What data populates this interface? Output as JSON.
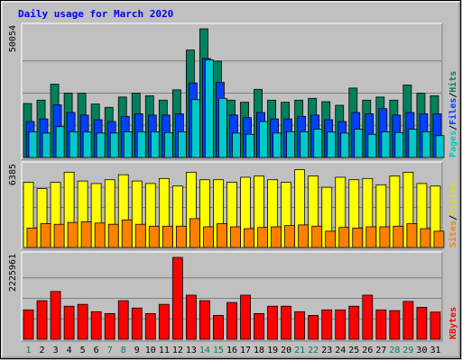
{
  "chart_data": {
    "type": "bar",
    "title": "Daily usage for March 2020",
    "categories": [
      "1",
      "2",
      "3",
      "4",
      "5",
      "6",
      "7",
      "8",
      "9",
      "10",
      "11",
      "12",
      "13",
      "14",
      "15",
      "16",
      "17",
      "18",
      "19",
      "20",
      "21",
      "22",
      "23",
      "24",
      "25",
      "26",
      "27",
      "28",
      "29",
      "30",
      "31"
    ],
    "weekend_days": [
      "1",
      "7",
      "8",
      "14",
      "15",
      "21",
      "22",
      "28",
      "29"
    ],
    "panels": [
      {
        "id": "hits-panel",
        "ymax": 50054,
        "ymax_label": "50054",
        "legend": [
          {
            "text": "Pages",
            "color": "#00c8c8"
          },
          {
            "text": "Files",
            "color": "#0040ff"
          },
          {
            "text": "Hits",
            "color": "#00805c"
          }
        ],
        "series": [
          {
            "name": "Hits",
            "color": "#00805c",
            "values": [
              21000,
              22300,
              28500,
              25000,
              25000,
              20800,
              19500,
              23500,
              25000,
              24000,
              22300,
              26300,
              41800,
              50054,
              37500,
              22300,
              21500,
              26500,
              22300,
              21500,
              22300,
              23000,
              21700,
              20300,
              27000,
              22300,
              23500,
              22300,
              28200,
              25000,
              24000
            ]
          },
          {
            "name": "Files",
            "color": "#0040ff",
            "values": [
              14000,
              15000,
              20500,
              17500,
              16500,
              14700,
              14000,
              16000,
              17000,
              16500,
              16500,
              17000,
              29000,
              38500,
              29200,
              16500,
              15500,
              17500,
              15000,
              15000,
              16000,
              16500,
              14700,
              14000,
              17500,
              17000,
              19000,
              16500,
              17500,
              17000,
              17000
            ]
          },
          {
            "name": "Pages",
            "color": "#00c8c8",
            "values": [
              10000,
              9500,
              12000,
              10000,
              9900,
              9500,
              9500,
              10000,
              10000,
              10000,
              9700,
              10000,
              22500,
              38000,
              23000,
              9500,
              9000,
              14000,
              9500,
              10000,
              10000,
              11000,
              9900,
              9500,
              11000,
              9000,
              10000,
              9700,
              11000,
              10000,
              8500
            ]
          }
        ]
      },
      {
        "id": "visits-panel",
        "ymax": 6385,
        "ymax_label": "6385",
        "legend": [
          {
            "text": "Sites",
            "color": "#ff8000"
          },
          {
            "text": "Visits",
            "color": "#e0e000"
          }
        ],
        "series": [
          {
            "name": "Visits",
            "color": "#ffff00",
            "values": [
              5200,
              4700,
              5200,
              6000,
              5300,
              5100,
              5400,
              5800,
              5300,
              5100,
              5500,
              4900,
              6000,
              5400,
              5400,
              5200,
              5600,
              5700,
              5400,
              5200,
              6200,
              5700,
              4800,
              5600,
              5400,
              5500,
              5000,
              5700,
              6000,
              5100,
              4900
            ]
          },
          {
            "name": "Sites",
            "color": "#ff8000",
            "values": [
              1550,
              1900,
              1850,
              2000,
              2050,
              1950,
              1850,
              2200,
              1850,
              1700,
              1700,
              1700,
              2300,
              1650,
              1900,
              1650,
              1500,
              1600,
              1650,
              1750,
              1800,
              1700,
              1300,
              1600,
              1550,
              1650,
              1650,
              1700,
              1900,
              1500,
              1300
            ]
          }
        ]
      },
      {
        "id": "kbytes-panel",
        "ymax": 2225961,
        "ymax_label": "2225961",
        "legend": [
          {
            "text": "KBytes",
            "color": "#ff0000"
          }
        ],
        "series": [
          {
            "name": "KBytes",
            "color": "#ff0000",
            "values": [
              800000,
              1050000,
              1300000,
              900000,
              950000,
              750000,
              700000,
              1050000,
              850000,
              700000,
              950000,
              2225961,
              1200000,
              1050000,
              650000,
              1000000,
              1200000,
              700000,
              900000,
              900000,
              750000,
              650000,
              800000,
              800000,
              900000,
              1200000,
              800000,
              780000,
              1030000,
              870000,
              740000
            ]
          }
        ]
      }
    ],
    "grid": true
  }
}
